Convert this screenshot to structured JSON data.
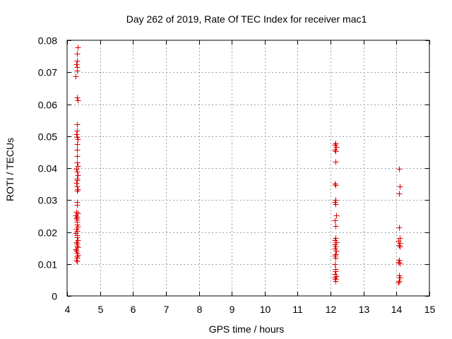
{
  "chart_data": {
    "type": "scatter",
    "title": "Day 262 of 2019, Rate Of TEC Index for receiver mac1",
    "xlabel": "GPS time / hours",
    "ylabel": "ROTI / TECUs",
    "xlim": [
      4,
      15
    ],
    "ylim": [
      0,
      0.08
    ],
    "xticks": [
      4,
      5,
      6,
      7,
      8,
      9,
      10,
      11,
      12,
      13,
      14,
      15
    ],
    "yticks": [
      0,
      0.01,
      0.02,
      0.03,
      0.04,
      0.05,
      0.06,
      0.07,
      0.08
    ],
    "ytick_labels": [
      "0",
      "0.01",
      "0.02",
      "0.03",
      "0.04",
      "0.05",
      "0.06",
      "0.07",
      "0.08"
    ],
    "grid": true,
    "marker": "+",
    "marker_color": "#e00000",
    "series": [
      {
        "name": "receiver mac1",
        "points": [
          [
            4.33,
            0.0777
          ],
          [
            4.31,
            0.0757
          ],
          [
            4.29,
            0.0737
          ],
          [
            4.27,
            0.0725
          ],
          [
            4.3,
            0.0715
          ],
          [
            4.31,
            0.0705
          ],
          [
            4.26,
            0.0688
          ],
          [
            4.3,
            0.0621
          ],
          [
            4.32,
            0.0612
          ],
          [
            4.3,
            0.0536
          ],
          [
            4.31,
            0.0518
          ],
          [
            4.28,
            0.0505
          ],
          [
            4.31,
            0.0497
          ],
          [
            4.33,
            0.0491
          ],
          [
            4.3,
            0.0476
          ],
          [
            4.29,
            0.0458
          ],
          [
            4.31,
            0.0437
          ],
          [
            4.3,
            0.0418
          ],
          [
            4.32,
            0.0407
          ],
          [
            4.28,
            0.0398
          ],
          [
            4.3,
            0.0389
          ],
          [
            4.33,
            0.0379
          ],
          [
            4.29,
            0.0367
          ],
          [
            4.31,
            0.0362
          ],
          [
            4.27,
            0.0353
          ],
          [
            4.3,
            0.0343
          ],
          [
            4.32,
            0.0334
          ],
          [
            4.29,
            0.0329
          ],
          [
            4.31,
            0.0293
          ],
          [
            4.3,
            0.0285
          ],
          [
            4.28,
            0.0264
          ],
          [
            4.32,
            0.0258
          ],
          [
            4.26,
            0.0253
          ],
          [
            4.3,
            0.0248
          ],
          [
            4.27,
            0.0243
          ],
          [
            4.31,
            0.0238
          ],
          [
            4.29,
            0.0231
          ],
          [
            4.3,
            0.0224
          ],
          [
            4.32,
            0.0216
          ],
          [
            4.28,
            0.0209
          ],
          [
            4.31,
            0.0203
          ],
          [
            4.26,
            0.0197
          ],
          [
            4.3,
            0.0191
          ],
          [
            4.29,
            0.0184
          ],
          [
            4.33,
            0.0175
          ],
          [
            4.27,
            0.0168
          ],
          [
            4.31,
            0.0163
          ],
          [
            4.3,
            0.0158
          ],
          [
            4.32,
            0.0152
          ],
          [
            4.26,
            0.0146
          ],
          [
            4.28,
            0.0141
          ],
          [
            4.3,
            0.0135
          ],
          [
            4.33,
            0.0129
          ],
          [
            4.29,
            0.0124
          ],
          [
            4.31,
            0.0119
          ],
          [
            4.27,
            0.0113
          ],
          [
            4.3,
            0.0108
          ],
          [
            12.15,
            0.0478
          ],
          [
            12.13,
            0.0472
          ],
          [
            12.16,
            0.0466
          ],
          [
            12.12,
            0.0458
          ],
          [
            12.14,
            0.0452
          ],
          [
            12.15,
            0.042
          ],
          [
            12.13,
            0.0352
          ],
          [
            12.15,
            0.0346
          ],
          [
            12.14,
            0.03
          ],
          [
            12.13,
            0.0293
          ],
          [
            12.15,
            0.0287
          ],
          [
            12.16,
            0.0253
          ],
          [
            12.12,
            0.0237
          ],
          [
            12.15,
            0.0218
          ],
          [
            12.14,
            0.0182
          ],
          [
            12.13,
            0.0175
          ],
          [
            12.16,
            0.0167
          ],
          [
            12.12,
            0.0161
          ],
          [
            12.15,
            0.0155
          ],
          [
            12.13,
            0.0148
          ],
          [
            12.16,
            0.0141
          ],
          [
            12.14,
            0.0131
          ],
          [
            12.12,
            0.0125
          ],
          [
            12.15,
            0.012
          ],
          [
            12.13,
            0.0099
          ],
          [
            12.15,
            0.0085
          ],
          [
            12.14,
            0.0078
          ],
          [
            12.12,
            0.0068
          ],
          [
            12.16,
            0.0062
          ],
          [
            12.13,
            0.0058
          ],
          [
            12.15,
            0.0053
          ],
          [
            12.14,
            0.0047
          ],
          [
            14.08,
            0.0398
          ],
          [
            14.1,
            0.0342
          ],
          [
            14.07,
            0.032
          ],
          [
            14.08,
            0.0215
          ],
          [
            14.09,
            0.0182
          ],
          [
            14.06,
            0.0172
          ],
          [
            14.1,
            0.0166
          ],
          [
            14.07,
            0.016
          ],
          [
            14.09,
            0.0155
          ],
          [
            14.08,
            0.0112
          ],
          [
            14.06,
            0.0107
          ],
          [
            14.09,
            0.0101
          ],
          [
            14.07,
            0.0064
          ],
          [
            14.1,
            0.0058
          ],
          [
            14.08,
            0.0047
          ],
          [
            14.06,
            0.0042
          ]
        ]
      }
    ]
  }
}
